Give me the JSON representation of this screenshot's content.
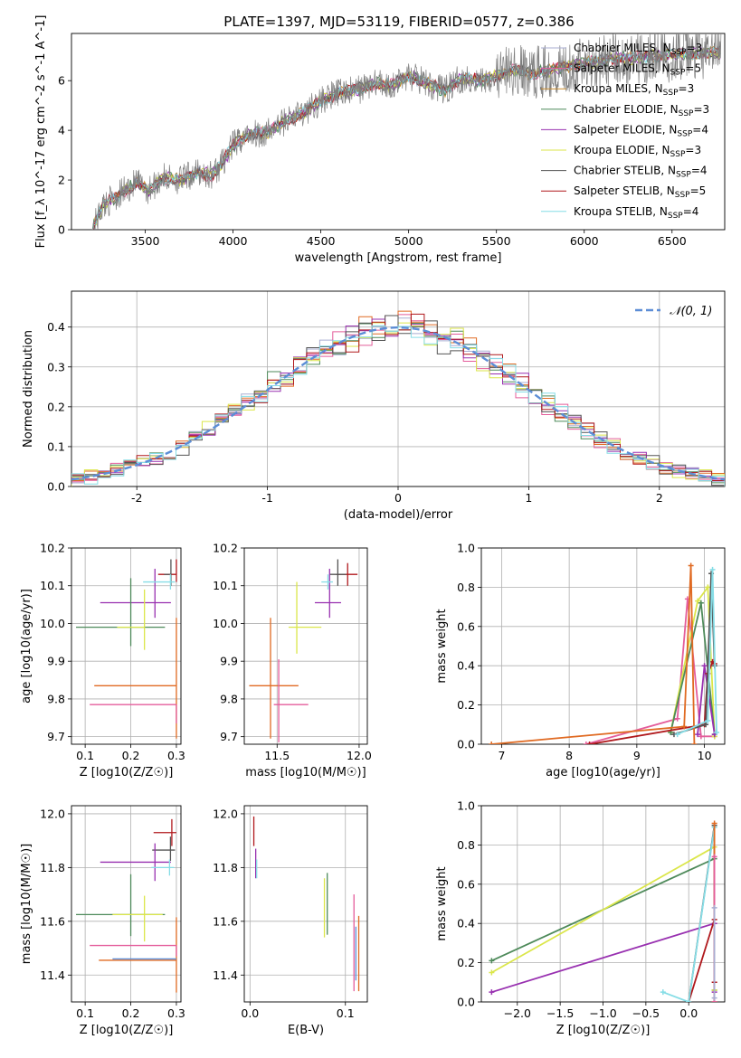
{
  "figure": {
    "title": "PLATE=1397, MJD=53119, FIBERID=0577, z=0.386"
  },
  "colors": {
    "Chabrier MILES": "#a9aed2",
    "Salpeter MILES": "#e45d9b",
    "Kroupa MILES": "#c88a2c",
    "Chabrier ELODIE": "#4e8a5a",
    "Salpeter ELODIE": "#9830b0",
    "Kroupa ELODIE": "#dbe64a",
    "Chabrier STELIB": "#555555",
    "Salpeter STELIB": "#b0181c",
    "Kroupa STELIB": "#86dde6",
    "model_orange": "#e06a22",
    "normal_dashed": "#5c8dd6"
  },
  "chart_data": [
    {
      "id": "spectrum",
      "type": "line",
      "title": "PLATE=1397, MJD=53119, FIBERID=0577, z=0.386",
      "xlabel": "wavelength [Angstrom, rest frame]",
      "ylabel": "Flux [f_λ 10^-17 erg cm^-2 s^-1 A^-1]",
      "xlim": [
        3080,
        6800
      ],
      "ylim": [
        0,
        7.9
      ],
      "xticks": [
        3500,
        4000,
        4500,
        5000,
        5500,
        6000,
        6500
      ],
      "yticks": [
        0,
        2,
        4,
        6
      ],
      "legend_position": "top-right",
      "legend": [
        {
          "label": "Chabrier MILES, N_SSP=3",
          "color": "#a9aed2"
        },
        {
          "label": "Salpeter MILES, N_SSP=5",
          "color": "#e45d9b"
        },
        {
          "label": "Kroupa MILES, N_SSP=3",
          "color": "#c88a2c"
        },
        {
          "label": "Chabrier ELODIE, N_SSP=3",
          "color": "#4e8a5a"
        },
        {
          "label": "Salpeter ELODIE, N_SSP=4",
          "color": "#9830b0"
        },
        {
          "label": "Kroupa ELODIE, N_SSP=3",
          "color": "#dbe64a"
        },
        {
          "label": "Chabrier STELIB, N_SSP=4",
          "color": "#555555"
        },
        {
          "label": "Salpeter STELIB, N_SSP=5",
          "color": "#b0181c"
        },
        {
          "label": "Kroupa STELIB, N_SSP=4",
          "color": "#86dde6"
        }
      ],
      "continuum": {
        "x": [
          3200,
          3260,
          3350,
          3450,
          3520,
          3600,
          3700,
          3800,
          3880,
          3930,
          4000,
          4100,
          4200,
          4300,
          4400,
          4500,
          4600,
          4700,
          4800,
          4900,
          5000,
          5100,
          5200,
          5300,
          5400,
          5500,
          5600,
          5700,
          5800,
          5900,
          6000,
          6100,
          6200,
          6300,
          6400,
          6500,
          6600,
          6800
        ],
        "y": [
          0.0,
          1.0,
          1.4,
          1.9,
          1.6,
          2.1,
          2.0,
          2.3,
          2.2,
          2.6,
          3.4,
          3.9,
          3.9,
          4.4,
          4.7,
          5.2,
          5.5,
          5.6,
          5.9,
          5.8,
          6.2,
          5.9,
          5.6,
          6.1,
          6.0,
          6.2,
          6.4,
          6.3,
          6.4,
          6.6,
          6.7,
          6.8,
          6.9,
          6.9,
          7.0,
          7.0,
          7.1,
          7.1
        ]
      },
      "noise_amplitude": 0.6
    },
    {
      "id": "residuals",
      "type": "line",
      "xlabel": "(data-model)/error",
      "ylabel": "Normed distribution",
      "xlim": [
        -2.5,
        2.5
      ],
      "ylim": [
        0,
        0.49
      ],
      "xticks": [
        -2,
        -1,
        0,
        1,
        2
      ],
      "yticks": [
        0.0,
        0.1,
        0.2,
        0.3,
        0.4
      ],
      "legend_position": "top-right",
      "legend": [
        {
          "label": "𝒩(0, 1)",
          "color": "#5c8dd6",
          "style": "dashed"
        }
      ],
      "bin_width": 0.1,
      "series_colors": [
        "#a9aed2",
        "#e45d9b",
        "#e06a22",
        "#4e8a5a",
        "#9830b0",
        "#dbe64a",
        "#555555",
        "#b0181c",
        "#86dde6"
      ]
    },
    {
      "id": "age_vs_Z",
      "type": "scatter",
      "xlabel": "Z [log10(Z/Z☉)]",
      "ylabel": "age  [log10(age/yr)]",
      "xlim": [
        0.07,
        0.31
      ],
      "ylim": [
        9.68,
        10.2
      ],
      "xticks": [
        0.1,
        0.2,
        0.3
      ],
      "xticklabels": [
        "0.1",
        "0.2",
        "0.3"
      ],
      "yticks": [
        9.7,
        9.8,
        9.9,
        10.0,
        10.1,
        10.2
      ],
      "yticklabels": [
        "9.7",
        "9.8",
        "9.9",
        "10.0",
        "10.1",
        "10.2"
      ],
      "points": [
        {
          "x": 0.3,
          "y": 10.13,
          "xerr": [
            0.04,
            0.0
          ],
          "yerr": [
            0.02,
            0.04
          ],
          "color": "#b0181c"
        },
        {
          "x": 0.288,
          "y": 10.13,
          "xerr": [
            0.015,
            0.0
          ],
          "yerr": [
            0.03,
            0.04
          ],
          "color": "#555555"
        },
        {
          "x": 0.253,
          "y": 10.055,
          "xerr": [
            0.12,
            0.035
          ],
          "yerr": [
            0.04,
            0.09
          ],
          "color": "#9830b0"
        },
        {
          "x": 0.287,
          "y": 10.11,
          "xerr": [
            0.06,
            0.01
          ],
          "yerr": [
            0.02,
            0.02
          ],
          "color": "#86dde6"
        },
        {
          "x": 0.2,
          "y": 9.99,
          "xerr": [
            0.12,
            0.075
          ],
          "yerr": [
            0.05,
            0.13
          ],
          "color": "#4e8a5a"
        },
        {
          "x": 0.23,
          "y": 9.99,
          "xerr": [
            0.06,
            0.0
          ],
          "yerr": [
            0.06,
            0.1
          ],
          "color": "#dbe64a"
        },
        {
          "x": 0.3,
          "y": 9.835,
          "xerr": [
            0.18,
            0.0
          ],
          "yerr": [
            0.14,
            0.18
          ],
          "color": "#e06a22"
        },
        {
          "x": 0.3,
          "y": 9.785,
          "xerr": [
            0.19,
            0.0
          ],
          "yerr": [
            0.05,
            0.0
          ],
          "color": "#e45d9b"
        }
      ]
    },
    {
      "id": "age_vs_mass",
      "type": "scatter",
      "xlabel": "mass [log10(M/M☉)]",
      "ylabel": "",
      "xlim": [
        11.3,
        12.05
      ],
      "ylim": [
        9.68,
        10.2
      ],
      "xticks": [
        11.5,
        12.0
      ],
      "xticklabels": [
        "11.5",
        "12.0"
      ],
      "yticks": [
        9.7,
        9.8,
        9.9,
        10.0,
        10.1,
        10.2
      ],
      "yticklabels": [
        "9.7",
        "9.8",
        "9.9",
        "10.0",
        "10.1",
        "10.2"
      ],
      "points": [
        {
          "x": 11.93,
          "y": 10.13,
          "xerr": [
            0.07,
            0.06
          ],
          "yerr": [
            0.03,
            0.03
          ],
          "color": "#b0181c"
        },
        {
          "x": 11.87,
          "y": 10.13,
          "xerr": [
            0.05,
            0.05
          ],
          "yerr": [
            0.03,
            0.04
          ],
          "color": "#555555"
        },
        {
          "x": 11.82,
          "y": 10.055,
          "xerr": [
            0.09,
            0.07
          ],
          "yerr": [
            0.04,
            0.09
          ],
          "color": "#9830b0"
        },
        {
          "x": 11.81,
          "y": 10.11,
          "xerr": [
            0.04,
            0.03
          ],
          "yerr": [
            0.02,
            0.02
          ],
          "color": "#86dde6"
        },
        {
          "x": 11.62,
          "y": 9.99,
          "xerr": [
            0.05,
            0.15
          ],
          "yerr": [
            0.07,
            0.12
          ],
          "color": "#dbe64a"
        },
        {
          "x": 11.46,
          "y": 9.835,
          "xerr": [
            0.13,
            0.17
          ],
          "yerr": [
            0.14,
            0.18
          ],
          "color": "#e06a22"
        },
        {
          "x": 11.51,
          "y": 9.785,
          "xerr": [
            0.03,
            0.18
          ],
          "yerr": [
            0.1,
            0.12
          ],
          "color": "#e45d9b"
        }
      ]
    },
    {
      "id": "weight_vs_age",
      "type": "line",
      "xlabel": "age  [log10(age/yr)]",
      "ylabel": "mass weight",
      "xlim": [
        6.7,
        10.3
      ],
      "ylim": [
        0,
        1.0
      ],
      "xticks": [
        7,
        8,
        9,
        10
      ],
      "xticklabels": [
        "7",
        "8",
        "9",
        "10"
      ],
      "yticks": [
        0.0,
        0.2,
        0.4,
        0.6,
        0.8,
        1.0
      ],
      "yticklabels": [
        "0.0",
        "0.2",
        "0.4",
        "0.6",
        "0.8",
        "1.0"
      ],
      "series": [
        {
          "color": "#e45d9b",
          "x": [
            8.25,
            9.6,
            9.75,
            9.95,
            10.15
          ],
          "y": [
            0.0,
            0.13,
            0.74,
            0.04,
            0.04
          ]
        },
        {
          "color": "#dbe64a",
          "x": [
            9.5,
            9.9,
            10.05,
            10.15
          ],
          "y": [
            0.06,
            0.73,
            0.8,
            0.04
          ]
        },
        {
          "color": "#4e8a5a",
          "x": [
            9.5,
            9.95,
            10.15
          ],
          "y": [
            0.06,
            0.72,
            0.05
          ]
        },
        {
          "color": "#9830b0",
          "x": [
            9.9,
            10.0,
            10.15
          ],
          "y": [
            0.05,
            0.4,
            0.05
          ]
        },
        {
          "color": "#b0181c",
          "x": [
            8.3,
            10.0,
            10.05,
            10.12,
            10.15
          ],
          "y": [
            0.0,
            0.1,
            0.36,
            0.42,
            0.41
          ]
        },
        {
          "color": "#555555",
          "x": [
            9.55,
            10.02,
            10.1,
            10.15
          ],
          "y": [
            0.05,
            0.1,
            0.87,
            0.4
          ]
        },
        {
          "color": "#e06a22",
          "x": [
            6.85,
            9.7,
            9.8,
            9.85
          ],
          "y": [
            0.0,
            0.09,
            0.91,
            0.0
          ]
        },
        {
          "color": "#86dde6",
          "x": [
            9.6,
            10.05,
            10.12,
            10.18
          ],
          "y": [
            0.05,
            0.12,
            0.89,
            0.06
          ]
        }
      ]
    },
    {
      "id": "mass_vs_Z",
      "type": "scatter",
      "xlabel": "Z [log10(Z/Z☉)]",
      "ylabel": "mass [log10(M/M☉)]",
      "xlim": [
        0.07,
        0.31
      ],
      "ylim": [
        11.3,
        12.03
      ],
      "xticks": [
        0.1,
        0.2,
        0.3
      ],
      "xticklabels": [
        "0.1",
        "0.2",
        "0.3"
      ],
      "yticks": [
        11.4,
        11.6,
        11.8,
        12.0
      ],
      "yticklabels": [
        "11.4",
        "11.6",
        "11.8",
        "12.0"
      ],
      "points": [
        {
          "x": 0.29,
          "y": 11.93,
          "xerr": [
            0.04,
            0.01
          ],
          "yerr": [
            0.05,
            0.05
          ],
          "color": "#b0181c"
        },
        {
          "x": 0.287,
          "y": 11.865,
          "xerr": [
            0.04,
            0.01
          ],
          "yerr": [
            0.04,
            0.05
          ],
          "color": "#555555"
        },
        {
          "x": 0.253,
          "y": 11.82,
          "xerr": [
            0.12,
            0.035
          ],
          "yerr": [
            0.07,
            0.07
          ],
          "color": "#9830b0"
        },
        {
          "x": 0.285,
          "y": 11.8,
          "xerr": [
            0.04,
            0.01
          ],
          "yerr": [
            0.03,
            0.03
          ],
          "color": "#86dde6"
        },
        {
          "x": 0.2,
          "y": 11.625,
          "xerr": [
            0.12,
            0.075
          ],
          "yerr": [
            0.08,
            0.15
          ],
          "color": "#4e8a5a"
        },
        {
          "x": 0.23,
          "y": 11.625,
          "xerr": [
            0.07,
            0.04
          ],
          "yerr": [
            0.1,
            0.07
          ],
          "color": "#dbe64a"
        },
        {
          "x": 0.3,
          "y": 11.455,
          "xerr": [
            0.17,
            0.0
          ],
          "yerr": [
            0.12,
            0.16
          ],
          "color": "#e06a22"
        },
        {
          "x": 0.3,
          "y": 11.51,
          "xerr": [
            0.19,
            0.0
          ],
          "yerr": [
            0.04,
            0.0
          ],
          "color": "#e45d9b"
        },
        {
          "x": 0.3,
          "y": 11.46,
          "xerr": [
            0.14,
            0.0
          ],
          "yerr": [
            0.0,
            0.0
          ],
          "color": "#5c8dd6"
        }
      ]
    },
    {
      "id": "mass_vs_ebv",
      "type": "scatter",
      "xlabel": "E(B-V)",
      "ylabel": "",
      "xlim": [
        -0.006,
        0.123
      ],
      "ylim": [
        11.3,
        12.03
      ],
      "xticks": [
        0.0,
        0.1
      ],
      "xticklabels": [
        "0.0",
        "0.1"
      ],
      "yticks": [
        11.4,
        11.6,
        11.8,
        12.0
      ],
      "yticklabels": [
        "11.4",
        "11.6",
        "11.8",
        "12.0"
      ],
      "points": [
        {
          "x": 0.004,
          "y": 11.93,
          "xerr": [
            0,
            0
          ],
          "yerr": [
            0.05,
            0.06
          ],
          "color": "#b0181c"
        },
        {
          "x": 0.006,
          "y": 11.82,
          "xerr": [
            0,
            0
          ],
          "yerr": [
            0.06,
            0.05
          ],
          "color": "#9830b0"
        },
        {
          "x": 0.007,
          "y": 11.8,
          "xerr": [
            0,
            0
          ],
          "yerr": [
            0.04,
            0.03
          ],
          "color": "#86dde6"
        },
        {
          "x": 0.078,
          "y": 11.62,
          "xerr": [
            0,
            0
          ],
          "yerr": [
            0.08,
            0.14
          ],
          "color": "#dbe64a"
        },
        {
          "x": 0.081,
          "y": 11.65,
          "xerr": [
            0,
            0
          ],
          "yerr": [
            0.1,
            0.13
          ],
          "color": "#4e8a5a"
        },
        {
          "x": 0.109,
          "y": 11.52,
          "xerr": [
            0,
            0
          ],
          "yerr": [
            0.18,
            0.18
          ],
          "color": "#e45d9b"
        },
        {
          "x": 0.111,
          "y": 11.48,
          "xerr": [
            0,
            0
          ],
          "yerr": [
            0.1,
            0.1
          ],
          "color": "#5c8dd6"
        },
        {
          "x": 0.114,
          "y": 11.47,
          "xerr": [
            0,
            0
          ],
          "yerr": [
            0.13,
            0.15
          ],
          "color": "#e06a22"
        }
      ]
    },
    {
      "id": "weight_vs_Z",
      "type": "line",
      "xlabel": "Z [log10(Z/Z☉)]",
      "ylabel": "mass weight",
      "xlim": [
        -2.42,
        0.42
      ],
      "ylim": [
        0,
        1.0
      ],
      "xticks": [
        -2.0,
        -1.5,
        -1.0,
        -0.5,
        0.0
      ],
      "xticklabels": [
        "−2.0",
        "−1.5",
        "−1.0",
        "−0.5",
        "0.0"
      ],
      "yticks": [
        0.0,
        0.2,
        0.4,
        0.6,
        0.8,
        1.0
      ],
      "yticklabels": [
        "0.0",
        "0.2",
        "0.4",
        "0.6",
        "0.8",
        "1.0"
      ],
      "series": [
        {
          "color": "#4e8a5a",
          "x": [
            -2.3,
            0.3,
            0.3
          ],
          "y": [
            0.21,
            0.73,
            0.06
          ]
        },
        {
          "color": "#dbe64a",
          "x": [
            -2.3,
            0.3,
            0.3
          ],
          "y": [
            0.15,
            0.79,
            0.06
          ]
        },
        {
          "color": "#9830b0",
          "x": [
            -2.3,
            0.3,
            0.3
          ],
          "y": [
            0.05,
            0.4,
            0.05
          ]
        },
        {
          "color": "#b0181c",
          "x": [
            0.0,
            0.3,
            0.3
          ],
          "y": [
            0.0,
            0.42,
            0.1
          ]
        },
        {
          "color": "#555555",
          "x": [
            0.0,
            0.3,
            0.3
          ],
          "y": [
            0.0,
            0.9,
            0.0
          ]
        },
        {
          "color": "#86dde6",
          "x": [
            -0.3,
            0.0,
            0.3
          ],
          "y": [
            0.05,
            0.0,
            0.89
          ]
        },
        {
          "color": "#e06a22",
          "x": [
            0.3,
            0.3
          ],
          "y": [
            0.0,
            0.91
          ]
        },
        {
          "color": "#e45d9b",
          "x": [
            0.3,
            0.3
          ],
          "y": [
            0.0,
            0.74
          ]
        },
        {
          "color": "#a9aed2",
          "x": [
            0.3,
            0.3
          ],
          "y": [
            0.02,
            0.48
          ]
        }
      ]
    }
  ]
}
